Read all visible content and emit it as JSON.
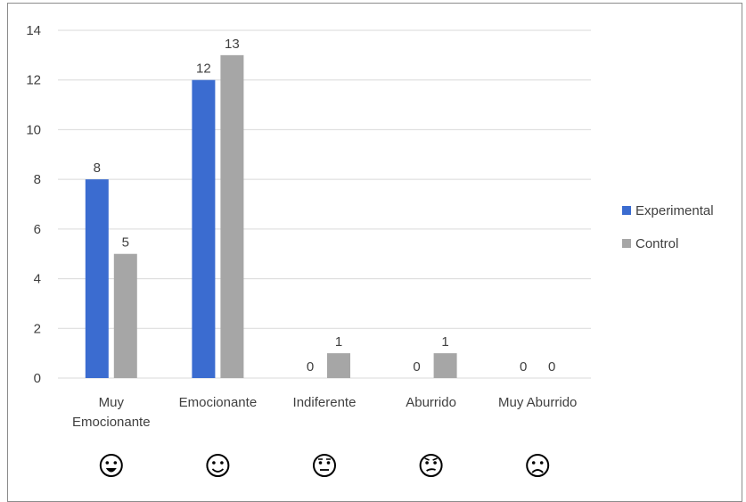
{
  "chart_data": {
    "type": "bar",
    "title": "",
    "xlabel": "",
    "ylabel": "",
    "categories": [
      "Muy Emocionante",
      "Emocionante",
      "Indiferente",
      "Aburrido",
      "Muy Aburrido"
    ],
    "category_lines": [
      [
        "Muy",
        "Emocionante"
      ],
      [
        "Emocionante"
      ],
      [
        "Indiferente"
      ],
      [
        "Aburrido"
      ],
      [
        "Muy Aburrido"
      ]
    ],
    "category_icons": [
      "big-grin-face-icon",
      "smiling-face-icon",
      "neutral-face-icon",
      "confused-face-icon",
      "frowning-face-icon"
    ],
    "series": [
      {
        "name": "Experimental",
        "values": [
          8,
          12,
          0,
          0,
          0
        ],
        "color": "#3b6cd0"
      },
      {
        "name": "Control",
        "values": [
          5,
          13,
          1,
          1,
          0
        ],
        "color": "#a6a6a6"
      }
    ],
    "ylim": [
      0,
      14
    ],
    "yticks": [
      0,
      2,
      4,
      6,
      8,
      10,
      12,
      14
    ],
    "grid": true,
    "legend": "right"
  }
}
